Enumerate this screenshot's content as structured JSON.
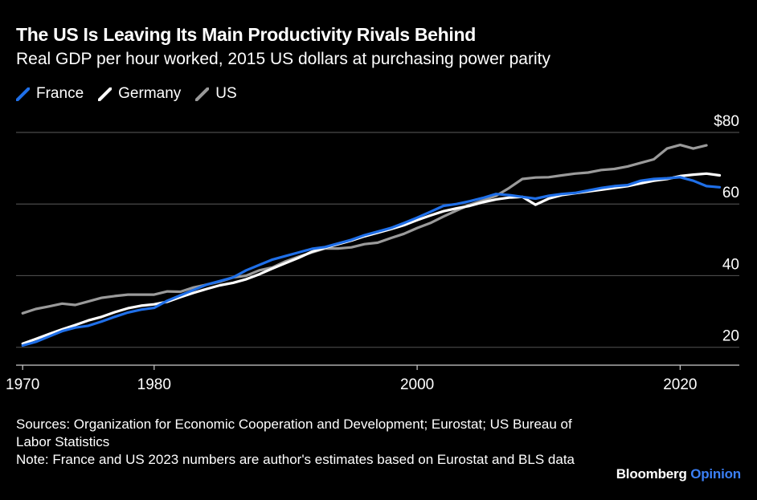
{
  "title": "The US Is Leaving Its Main Productivity Rivals Behind",
  "subtitle": "Real GDP per hour worked, 2015 US dollars at purchasing power parity",
  "sources": "Sources: Organization for Economic Cooperation and Development; Eurostat; US Bureau of Labor Statistics",
  "note": "Note: France and US 2023 numbers are author's estimates based on Eurostat and BLS data",
  "brand": {
    "name": "Bloomberg",
    "suffix": "Opinion"
  },
  "colors": {
    "France": "#1f6fe8",
    "Germany": "#ffffff",
    "US": "#9a9a9a",
    "grid": "#4a4a4a",
    "opinion": "#3b7ff5"
  },
  "chart_data": {
    "type": "line",
    "title": "The US Is Leaving Its Main Productivity Rivals Behind",
    "subtitle": "Real GDP per hour worked, 2015 US dollars at purchasing power parity",
    "xlabel": "",
    "ylabel": "",
    "x": [
      1970,
      1971,
      1972,
      1973,
      1974,
      1975,
      1976,
      1977,
      1978,
      1979,
      1980,
      1981,
      1982,
      1983,
      1984,
      1985,
      1986,
      1987,
      1988,
      1989,
      1990,
      1991,
      1992,
      1993,
      1994,
      1995,
      1996,
      1997,
      1998,
      1999,
      2000,
      2001,
      2002,
      2003,
      2004,
      2005,
      2006,
      2007,
      2008,
      2009,
      2010,
      2011,
      2012,
      2013,
      2014,
      2015,
      2016,
      2017,
      2018,
      2019,
      2020,
      2021,
      2022,
      2023
    ],
    "xticks": [
      1970,
      1980,
      2000,
      2020
    ],
    "xtick_labels": [
      "1970",
      "1980",
      "2000",
      "2020"
    ],
    "xlim": [
      1969.5,
      2024.5
    ],
    "yticks": [
      20,
      40,
      60,
      80
    ],
    "ytick_labels": [
      "20",
      "40",
      "60",
      "$80"
    ],
    "ylim": [
      15,
      80
    ],
    "grid": true,
    "legend": "top-left",
    "series": [
      {
        "name": "France",
        "values": [
          20.5,
          21.5,
          23,
          24.5,
          25.5,
          26,
          27.2,
          28.5,
          29.7,
          30.5,
          31,
          33,
          34.5,
          36,
          37.5,
          38.5,
          39.5,
          41.5,
          43,
          44.5,
          45.5,
          46.5,
          47.5,
          48,
          49,
          50,
          51.3,
          52.3,
          53.3,
          54.7,
          56.2,
          57.8,
          59.5,
          60,
          60.8,
          61.7,
          62.8,
          62.5,
          62,
          61.5,
          62.3,
          62.8,
          63.1,
          63.8,
          64.5,
          65,
          65.3,
          66.5,
          67,
          67.2,
          67.5,
          66.5,
          65,
          64.7
        ]
      },
      {
        "name": "Germany",
        "values": [
          21,
          22.3,
          23.7,
          25,
          26.2,
          27.5,
          28.5,
          29.8,
          30.9,
          31.6,
          32,
          32.7,
          34,
          35.2,
          36.3,
          37.3,
          38,
          39,
          40.4,
          42,
          43.5,
          45,
          46.7,
          47.8,
          48.8,
          49.8,
          51,
          52,
          53,
          54.1,
          55.5,
          56.8,
          58,
          58.8,
          59.5,
          60.5,
          61.3,
          61.8,
          62,
          59.8,
          61.5,
          62.5,
          63,
          63.5,
          64,
          64.5,
          65,
          65.8,
          66.5,
          67,
          67.8,
          68.2,
          68.5,
          68
        ]
      },
      {
        "name": "US",
        "values": [
          29.5,
          30.7,
          31.4,
          32.2,
          31.8,
          32.8,
          33.8,
          34.3,
          34.7,
          34.7,
          34.7,
          35.6,
          35.5,
          36.7,
          37.5,
          38.3,
          39.5,
          40,
          41.5,
          42.3,
          44,
          45.3,
          46.5,
          47.6,
          47.6,
          47.9,
          48.8,
          49.2,
          50.5,
          51.7,
          53.3,
          54.7,
          56.5,
          58.2,
          59.8,
          61,
          62.3,
          64.5,
          67,
          67.4,
          67.5,
          68,
          68.5,
          68.8,
          69.5,
          69.8,
          70.5,
          71.5,
          72.5,
          75.5,
          76.5,
          75.5,
          76.4,
          null
        ]
      }
    ]
  }
}
